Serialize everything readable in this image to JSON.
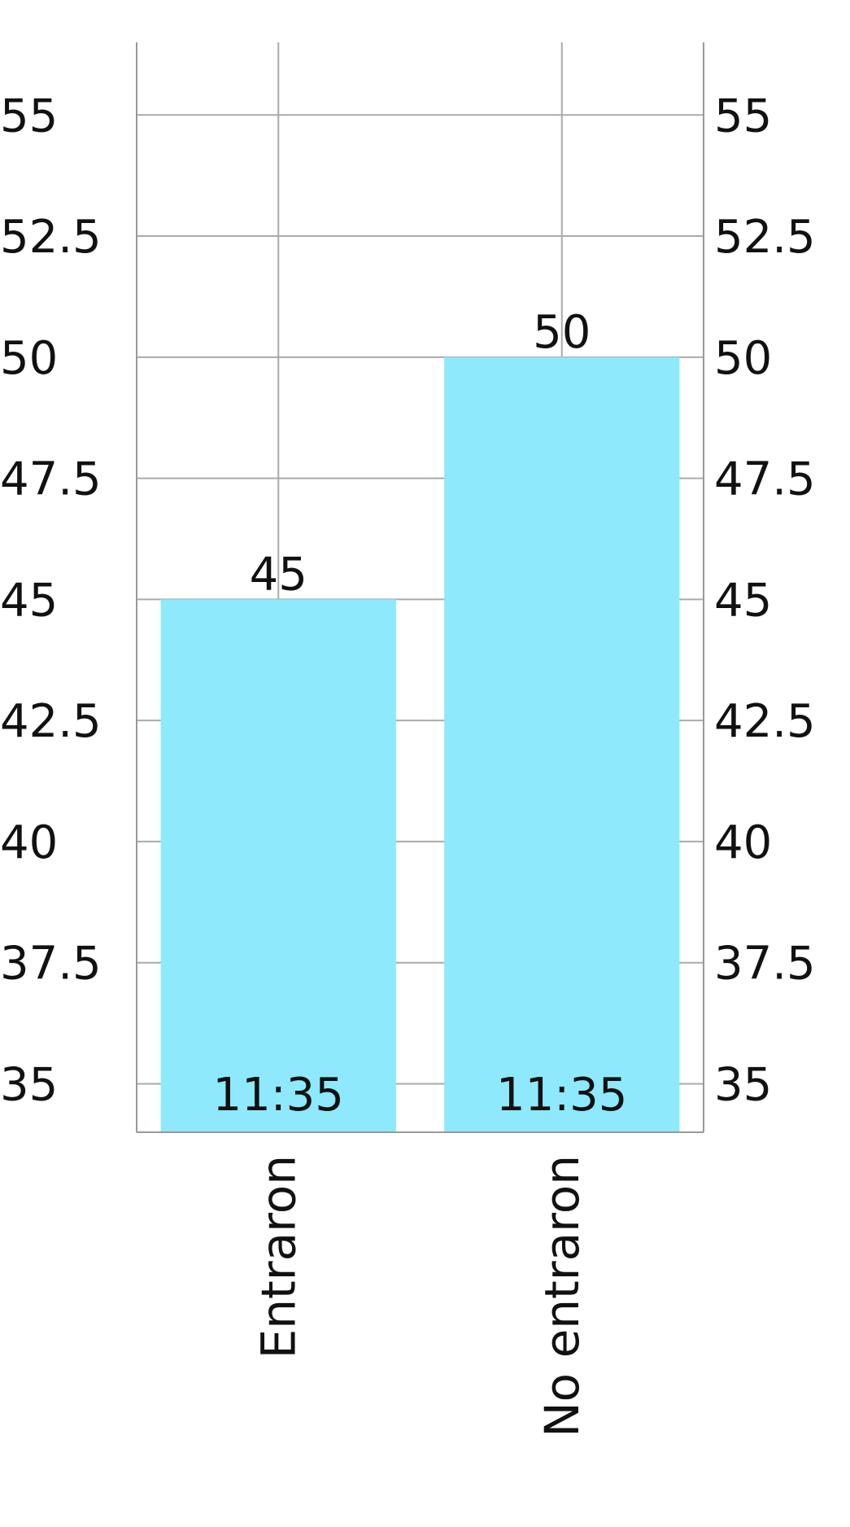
{
  "chart_data": {
    "type": "bar",
    "title": "",
    "xlabel": "",
    "ylabel": "",
    "categories": [
      "Entraron",
      "No entraron"
    ],
    "values": [
      45,
      50
    ],
    "bar_labels": [
      "11:35",
      "11:35"
    ],
    "ylim": [
      34,
      56.5
    ],
    "yticks": [
      35,
      37.5,
      40,
      42.5,
      45,
      47.5,
      50,
      52.5,
      55
    ],
    "ytick_labels": [
      "35",
      "37.5",
      "40",
      "42.5",
      "45",
      "47.5",
      "50",
      "52.5",
      "55"
    ],
    "grid": true,
    "secondary_axis": true,
    "colors": {
      "bar": "#8DE9FB",
      "grid": "#aaaaaa",
      "axis": "#999999",
      "text": "#111111"
    }
  }
}
